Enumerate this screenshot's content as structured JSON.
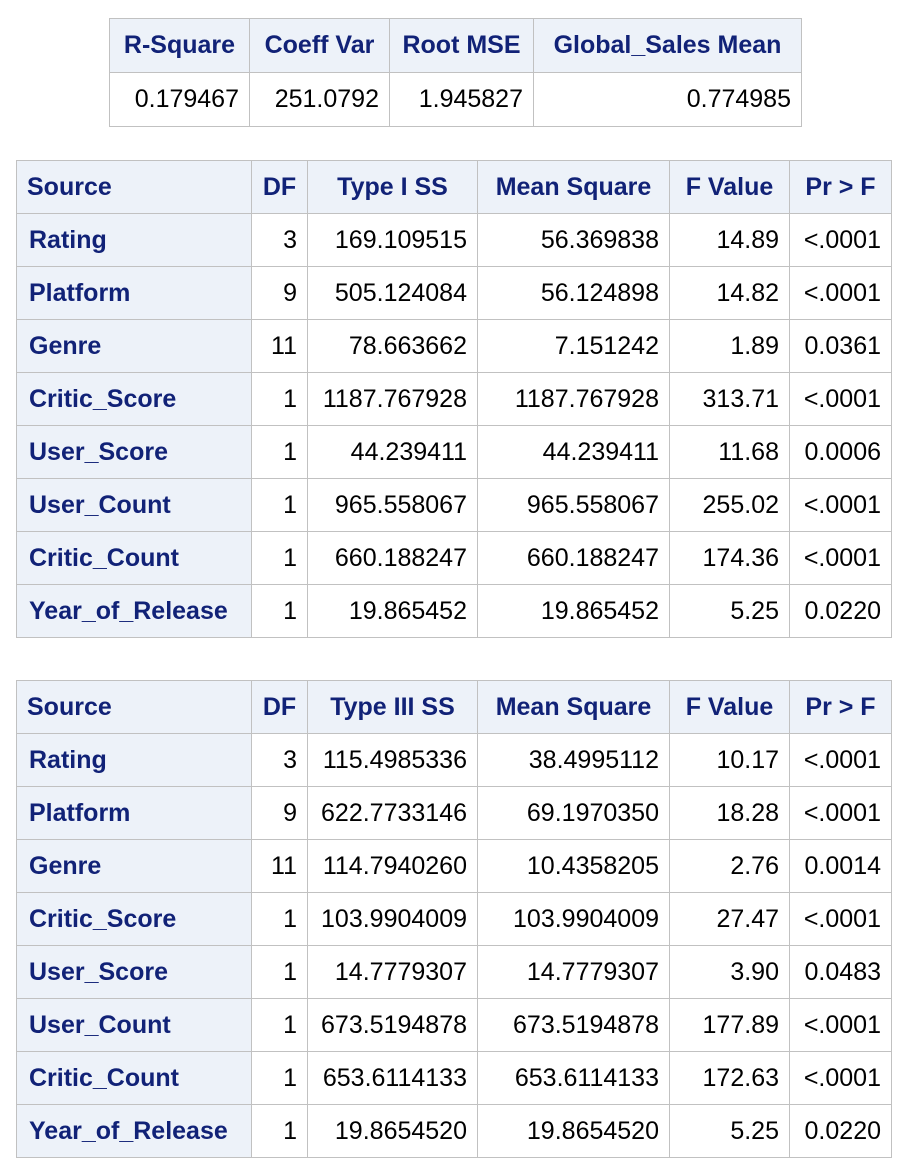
{
  "fit_stats": {
    "headers": [
      "R-Square",
      "Coeff Var",
      "Root MSE",
      "Global_Sales Mean"
    ],
    "values": [
      "0.179467",
      "251.0792",
      "1.945827",
      "0.774985"
    ]
  },
  "type1": {
    "headers": [
      "Source",
      "DF",
      "Type I SS",
      "Mean Square",
      "F Value",
      "Pr > F"
    ],
    "rows": [
      [
        "Rating",
        "3",
        "169.109515",
        "56.369838",
        "14.89",
        "<.0001"
      ],
      [
        "Platform",
        "9",
        "505.124084",
        "56.124898",
        "14.82",
        "<.0001"
      ],
      [
        "Genre",
        "11",
        "78.663662",
        "7.151242",
        "1.89",
        "0.0361"
      ],
      [
        "Critic_Score",
        "1",
        "1187.767928",
        "1187.767928",
        "313.71",
        "<.0001"
      ],
      [
        "User_Score",
        "1",
        "44.239411",
        "44.239411",
        "11.68",
        "0.0006"
      ],
      [
        "User_Count",
        "1",
        "965.558067",
        "965.558067",
        "255.02",
        "<.0001"
      ],
      [
        "Critic_Count",
        "1",
        "660.188247",
        "660.188247",
        "174.36",
        "<.0001"
      ],
      [
        "Year_of_Release",
        "1",
        "19.865452",
        "19.865452",
        "5.25",
        "0.0220"
      ]
    ]
  },
  "type3": {
    "headers": [
      "Source",
      "DF",
      "Type III SS",
      "Mean Square",
      "F Value",
      "Pr > F"
    ],
    "rows": [
      [
        "Rating",
        "3",
        "115.4985336",
        "38.4995112",
        "10.17",
        "<.0001"
      ],
      [
        "Platform",
        "9",
        "622.7733146",
        "69.1970350",
        "18.28",
        "<.0001"
      ],
      [
        "Genre",
        "11",
        "114.7940260",
        "10.4358205",
        "2.76",
        "0.0014"
      ],
      [
        "Critic_Score",
        "1",
        "103.9904009",
        "103.9904009",
        "27.47",
        "<.0001"
      ],
      [
        "User_Score",
        "1",
        "14.7779307",
        "14.7779307",
        "3.90",
        "0.0483"
      ],
      [
        "User_Count",
        "1",
        "673.5194878",
        "673.5194878",
        "177.89",
        "<.0001"
      ],
      [
        "Critic_Count",
        "1",
        "653.6114133",
        "653.6114133",
        "172.63",
        "<.0001"
      ],
      [
        "Year_of_Release",
        "1",
        "19.8654520",
        "19.8654520",
        "5.25",
        "0.0220"
      ]
    ]
  }
}
